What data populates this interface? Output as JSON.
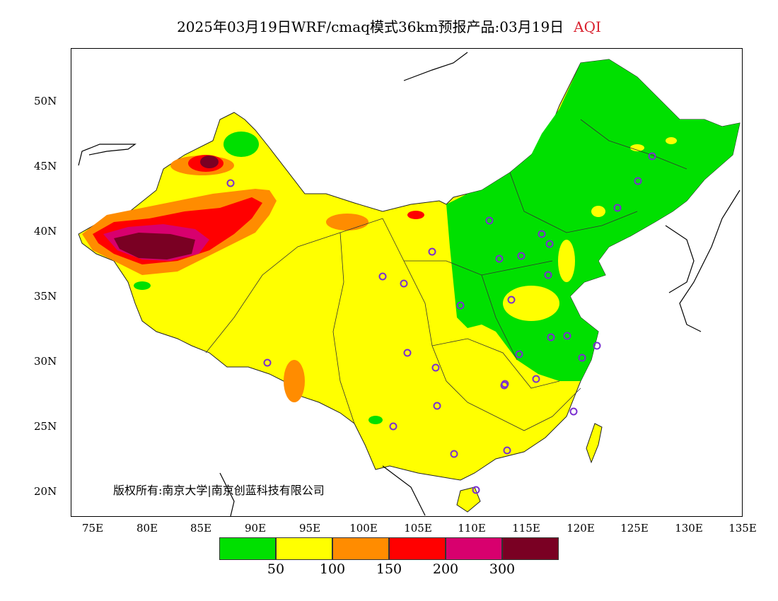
{
  "title": {
    "main": "2025年03月19日WRF/cmaq模式36km预报产品:03月19日",
    "variable": "AQI",
    "variable_color": "#d9212e"
  },
  "axes": {
    "lat_labels": [
      "50N",
      "45N",
      "40N",
      "35N",
      "30N",
      "25N",
      "20N"
    ],
    "lon_labels": [
      "75E",
      "80E",
      "85E",
      "90E",
      "95E",
      "100E",
      "105E",
      "110E",
      "115E",
      "120E",
      "125E",
      "130E",
      "135E"
    ],
    "lon_range": [
      73,
      135
    ],
    "lat_range": [
      18,
      54
    ]
  },
  "copyright": "版权所有:南京大学|南京创蓝科技有限公司",
  "legend": {
    "colors": [
      "#00e000",
      "#ffff00",
      "#ff8c00",
      "#ff0000",
      "#d8006e",
      "#7a0023"
    ],
    "labels": [
      "50",
      "100",
      "150",
      "200",
      "300"
    ]
  },
  "colors": {
    "good": "#00e000",
    "moderate": "#ffff00",
    "unhealthy_sensitive": "#ff8c00",
    "unhealthy": "#ff0000",
    "very_unhealthy": "#d8006e",
    "hazardous": "#7a0023",
    "station_marker": "#7a2fd0"
  }
}
